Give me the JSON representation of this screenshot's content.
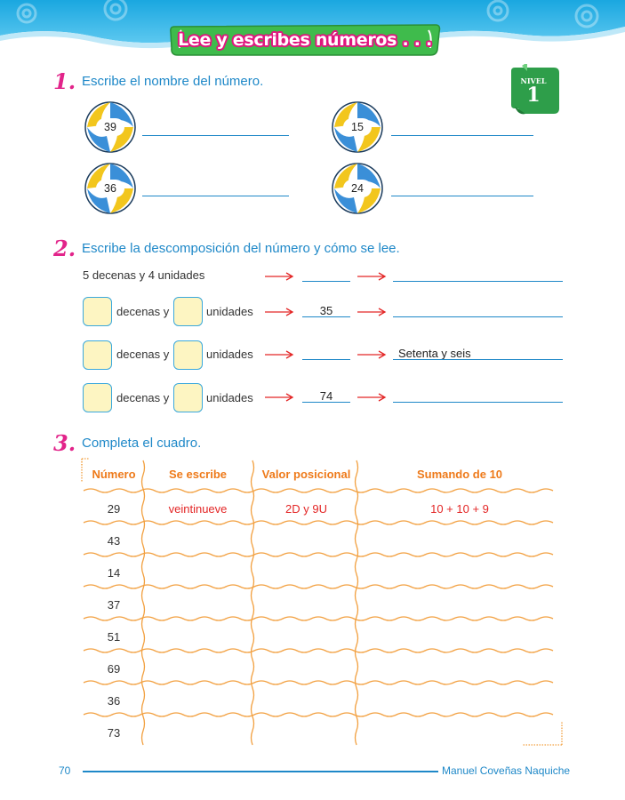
{
  "header": {
    "title": "Lee y escribes números . . ."
  },
  "level_badge": {
    "label": "NIVEL",
    "number": "1"
  },
  "section1": {
    "number": "1.",
    "instruction": "Escribe el nombre del número.",
    "balls": [
      "39",
      "15",
      "36",
      "24"
    ]
  },
  "section2": {
    "number": "2.",
    "instruction": "Escribe la descomposición del número y cómo se lee.",
    "example": "5 decenas y 4 unidades",
    "decenas_label": "decenas y",
    "unidades_label": "unidades",
    "rows": [
      {
        "number": "",
        "reading": ""
      },
      {
        "number": "35",
        "reading": ""
      },
      {
        "number": "",
        "reading": "Setenta y seis"
      },
      {
        "number": "74",
        "reading": ""
      }
    ]
  },
  "section3": {
    "number": "3.",
    "instruction": "Completa el cuadro.",
    "headers": [
      "Número",
      "Se escribe",
      "Valor posicional",
      "Sumando de 10"
    ],
    "rows": [
      [
        "29",
        "veintinueve",
        "2D y 9U",
        "10 + 10 + 9"
      ],
      [
        "43",
        "",
        "",
        ""
      ],
      [
        "14",
        "",
        "",
        ""
      ],
      [
        "37",
        "",
        "",
        ""
      ],
      [
        "51",
        "",
        "",
        ""
      ],
      [
        "69",
        "",
        "",
        ""
      ],
      [
        "36",
        "",
        "",
        ""
      ],
      [
        "73",
        "",
        "",
        ""
      ]
    ]
  },
  "footer": {
    "page": "70",
    "author": "Manuel Coveñas Naquiche"
  },
  "colors": {
    "accent_blue": "#1e88c8",
    "pink": "#e2248a",
    "orange": "#ee7a1a",
    "red": "#e32626",
    "green": "#2e9e4a"
  }
}
